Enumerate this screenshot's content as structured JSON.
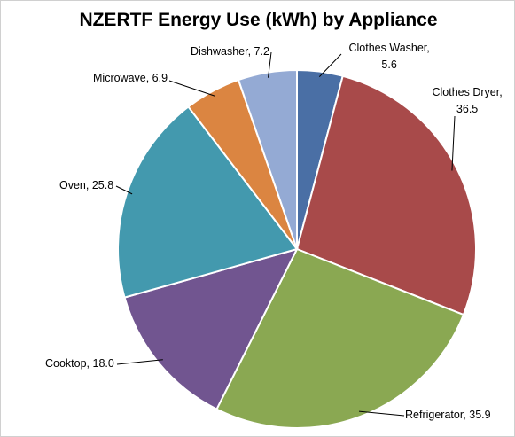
{
  "chart_data": {
    "type": "pie",
    "title": "NZERTF Energy Use (kWh) by Appliance",
    "values": [
      5.6,
      36.5,
      35.9,
      18.0,
      25.8,
      6.9,
      7.2
    ],
    "value_labels": [
      "Clothes Washer,\n5.6",
      "Clothes Dryer,\n36.5",
      "Refrigerator, 35.9",
      "Cooktop, 18.0",
      "Oven, 25.8",
      "Microwave, 6.9",
      "Dishwasher, 7.2"
    ],
    "colors": [
      "#4a6fa5",
      "#a84a4a",
      "#8aa852",
      "#715590",
      "#4399ae",
      "#db8541",
      "#94aad4"
    ]
  }
}
